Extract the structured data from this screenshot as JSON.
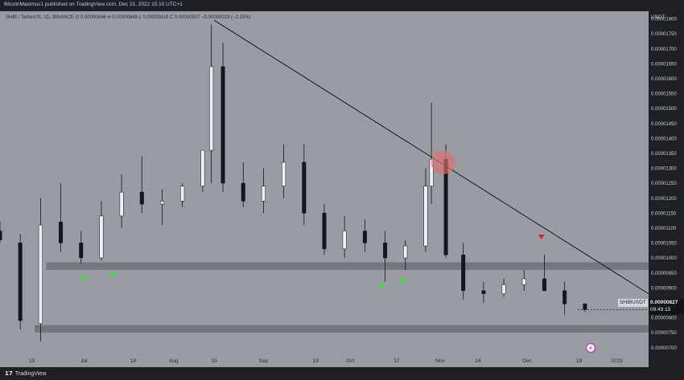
{
  "header": {
    "publisher": "BitcoinMaximus1 published on TradingView.com, Dec 21, 2022 15:10 UTC+1",
    "ohlc": "SHIB / TetherUS, 1D, BINANCE  O 0.00000846  H 0.00000849  L 0.00000818  C 0.00000827  −0.00000019 (−2.25%)"
  },
  "footer": {
    "brand": "TradingView",
    "logo_icon": "tradingview-logo-icon"
  },
  "price_axis": {
    "currency": "USDT"
  },
  "badges": {
    "symbol": "SHIBUSDT",
    "last_price": "0.00000827",
    "countdown": "09:49:15"
  },
  "colors": {
    "background": "#9a9ca4",
    "bull": "#eef0f4",
    "bear": "#15171c",
    "support_zone": "#6f7178",
    "trendline": "#1a1a1a",
    "green_arrow": "#2ee62e",
    "red_arrow": "#e02020",
    "rejection_circle": "#e07070",
    "event_icon": "#b048c8"
  },
  "chart_data": {
    "type": "candlestick",
    "title": "",
    "xlabel": "",
    "ylabel": "",
    "grid": false,
    "x_ticks": [
      "13",
      "Jul",
      "18",
      "Aug",
      "15",
      "Sep",
      "19",
      "Oct",
      "17",
      "Nov",
      "14",
      "Dec",
      "19",
      "2023"
    ],
    "x_tick_dates": [
      "2022-06-13",
      "2022-07-01",
      "2022-07-18",
      "2022-08-01",
      "2022-08-15",
      "2022-09-01",
      "2022-09-19",
      "2022-10-01",
      "2022-10-17",
      "2022-11-01",
      "2022-11-14",
      "2022-12-01",
      "2022-12-19",
      "2023-01-01"
    ],
    "x_range": [
      "2022-06-02",
      "2023-01-12"
    ],
    "y_ticks": [
      7e-06,
      7.5e-06,
      8e-06,
      8.5e-06,
      9e-06,
      9.5e-06,
      1e-05,
      1.05e-05,
      1.1e-05,
      1.15e-05,
      1.2e-05,
      1.25e-05,
      1.3e-05,
      1.35e-05,
      1.4e-05,
      1.45e-05,
      1.5e-05,
      1.55e-05,
      1.6e-05,
      1.65e-05,
      1.7e-05,
      1.75e-05,
      1.8e-05
    ],
    "ylim": [
      6.8e-06,
      1.82e-05
    ],
    "last_price": 8.27e-06,
    "ohlc_dates": [
      "2022-06-02",
      "2022-06-09",
      "2022-06-16",
      "2022-06-23",
      "2022-06-30",
      "2022-07-07",
      "2022-07-14",
      "2022-07-21",
      "2022-07-28",
      "2022-08-04",
      "2022-08-11",
      "2022-08-14",
      "2022-08-18",
      "2022-08-25",
      "2022-09-01",
      "2022-09-08",
      "2022-09-15",
      "2022-09-22",
      "2022-09-29",
      "2022-10-06",
      "2022-10-13",
      "2022-10-20",
      "2022-10-27",
      "2022-10-29",
      "2022-11-03",
      "2022-11-09",
      "2022-11-16",
      "2022-11-23",
      "2022-11-30",
      "2022-12-07",
      "2022-12-14",
      "2022-12-21"
    ],
    "ohlc_open": [
      1.09e-05,
      1.05e-05,
      7.8e-06,
      1.12e-05,
      1.05e-05,
      1e-05,
      1.14e-05,
      1.22e-05,
      1.18e-05,
      1.19e-05,
      1.24e-05,
      1.36e-05,
      1.64e-05,
      1.25e-05,
      1.19e-05,
      1.24e-05,
      1.32e-05,
      1.15e-05,
      1.03e-05,
      1.09e-05,
      1.05e-05,
      1e-05,
      1.04e-05,
      1.24e-05,
      1.33e-05,
      1.01e-05,
      8.9e-06,
      8.8e-06,
      9.1e-06,
      9.3e-06,
      8.9e-06,
      8.46e-06
    ],
    "ohlc_high": [
      1.12e-05,
      1.08e-05,
      1.2e-05,
      1.25e-05,
      1.09e-05,
      1.19e-05,
      1.28e-05,
      1.34e-05,
      1.23e-05,
      1.25e-05,
      1.36e-05,
      1.78e-05,
      1.72e-05,
      1.32e-05,
      1.3e-05,
      1.38e-05,
      1.38e-05,
      1.18e-05,
      1.14e-05,
      1.13e-05,
      1.09e-05,
      1.06e-05,
      1.3e-05,
      1.52e-05,
      1.38e-05,
      1.05e-05,
      9.2e-06,
      9.3e-06,
      9.6e-06,
      1.01e-05,
      9.2e-06,
      8.49e-06
    ],
    "ohlc_low": [
      1.05e-05,
      7.6e-06,
      7.2e-06,
      1.02e-05,
      9.8e-06,
      9.9e-06,
      1.1e-05,
      1.15e-05,
      1.11e-05,
      1.17e-05,
      1.22e-05,
      1.25e-05,
      1.22e-05,
      1.17e-05,
      1.15e-05,
      1.2e-05,
      1.11e-05,
      1.01e-05,
      1e-05,
      1.02e-05,
      9.2e-06,
      9.6e-06,
      1.02e-05,
      1.18e-05,
      1e-05,
      8.6e-06,
      8.5e-06,
      8.7e-06,
      8.9e-06,
      8.9e-06,
      8.1e-06,
      8.18e-06
    ],
    "ohlc_close": [
      1.06e-05,
      7.9e-06,
      1.11e-05,
      1.05e-05,
      1e-05,
      1.14e-05,
      1.22e-05,
      1.18e-05,
      1.19e-05,
      1.24e-05,
      1.36e-05,
      1.64e-05,
      1.25e-05,
      1.19e-05,
      1.24e-05,
      1.32e-05,
      1.15e-05,
      1.03e-05,
      1.09e-05,
      1.05e-05,
      1e-05,
      1.04e-05,
      1.24e-05,
      1.33e-05,
      1.01e-05,
      8.9e-06,
      8.8e-06,
      9.1e-06,
      9.3e-06,
      8.9e-06,
      8.46e-06,
      8.27e-06
    ],
    "support_zones": [
      {
        "y_low": 9.6e-06,
        "y_high": 9.85e-06,
        "x_start": "2022-06-18",
        "x_end": "2023-01-12"
      },
      {
        "y_low": 7.5e-06,
        "y_high": 7.75e-06,
        "x_start": "2022-06-14",
        "x_end": "2023-01-12"
      }
    ],
    "trendline": {
      "start": [
        "2022-08-15",
        1.795e-05
      ],
      "end": [
        "2023-01-12",
        8.8e-06
      ]
    },
    "rejection_circle": {
      "x": "2022-11-02",
      "y": 1.32e-05
    },
    "green_arrows": [
      {
        "x": "2022-07-01",
        "y": 9.35e-06
      },
      {
        "x": "2022-07-11",
        "y": 9.5e-06
      },
      {
        "x": "2022-10-12",
        "y": 9.1e-06
      },
      {
        "x": "2022-10-19",
        "y": 9.25e-06
      }
    ],
    "red_arrows": [
      {
        "x": "2022-12-06",
        "y": 1.07e-05
      }
    ],
    "event_marker": {
      "x": "2022-12-23"
    }
  }
}
